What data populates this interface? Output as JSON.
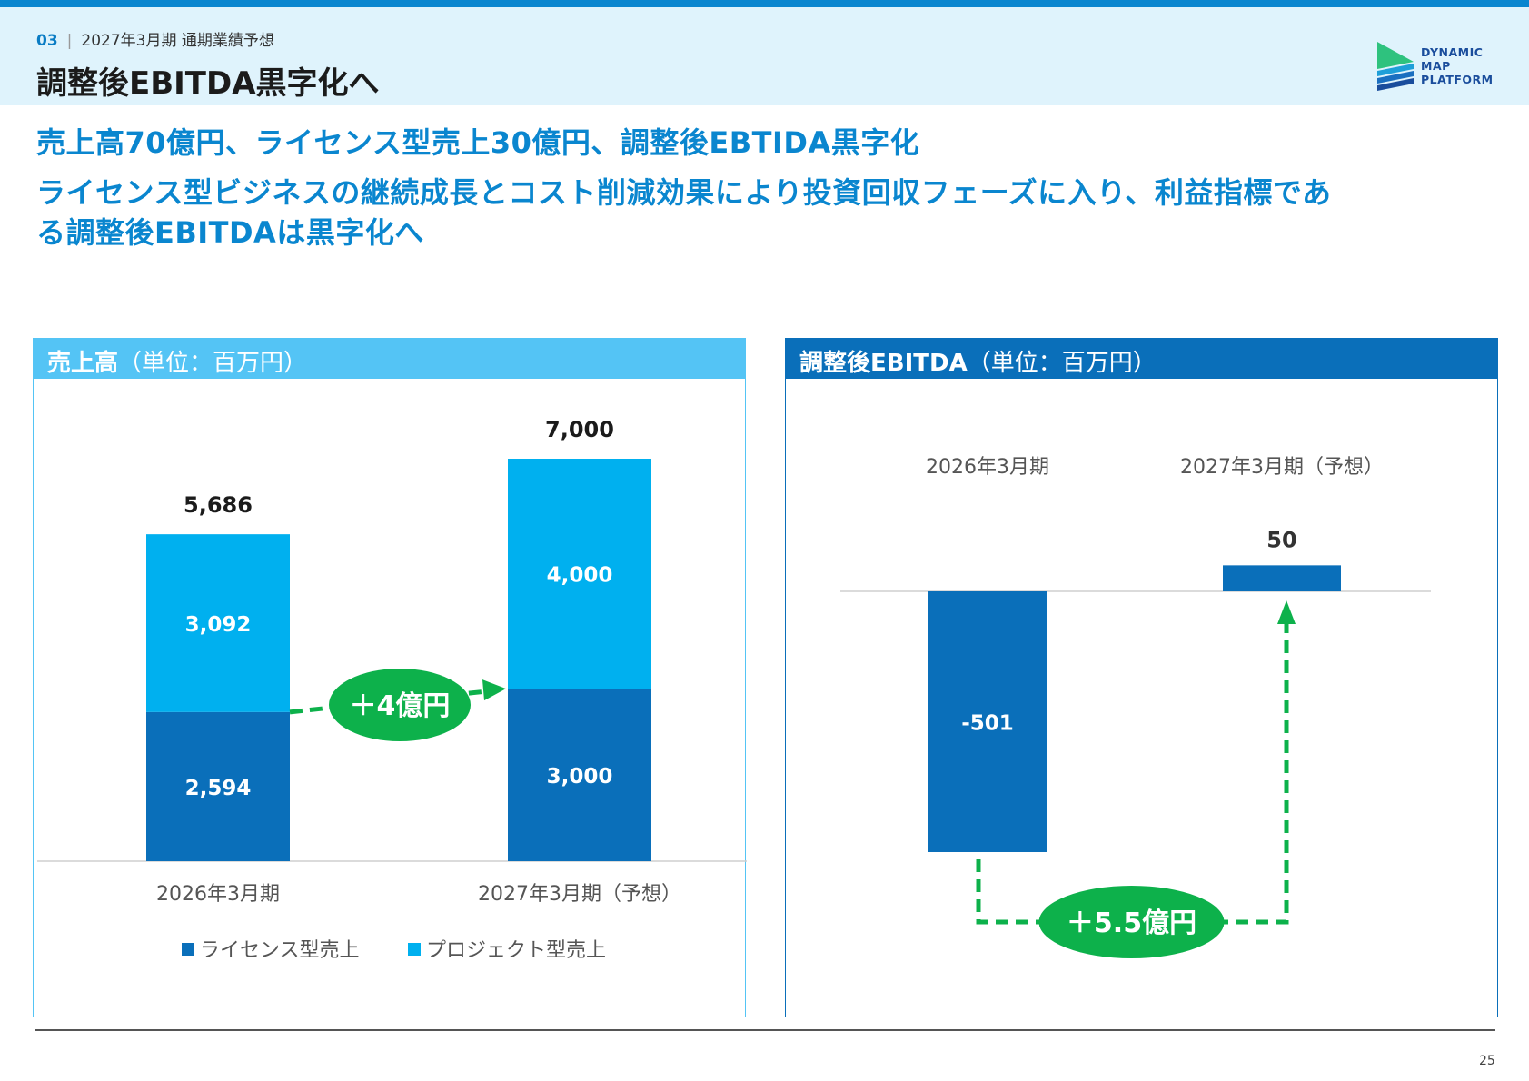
{
  "header": {
    "section_number": "03",
    "breadcrumb": "2027年3月期 通期業績予想",
    "title": "調整後EBITDA黒字化へ",
    "logo_lines": [
      "DYNAMIC",
      "MAP",
      "PLATFORM"
    ]
  },
  "headlines": [
    "売上高70億円、ライセンス型売上30億円、調整後EBTIDA黒字化",
    "ライセンス型ビジネスの継続成長とコスト削減効果により投資回収フェーズに入り、利益指標であ",
    "る調整後EBITDAは黒字化へ"
  ],
  "colors": {
    "license": "#0a6fba",
    "project": "#00b0ef",
    "ebitda": "#0a6fba",
    "growth_badge": "#0db14b",
    "header_bg": "#dff3fc",
    "accent": "#0a86cf"
  },
  "chart_data": [
    {
      "type": "bar",
      "stacked": true,
      "panel_title": "売上高",
      "panel_unit": "（単位：百万円）",
      "categories": [
        "2026年3月期",
        "2027年3月期（予想）"
      ],
      "series": [
        {
          "name": "ライセンス型売上",
          "values": [
            2594,
            3000
          ],
          "labels": [
            "2,594",
            "3,000"
          ]
        },
        {
          "name": "プロジェクト型売上",
          "values": [
            3092,
            4000
          ],
          "labels": [
            "3,092",
            "4,000"
          ]
        }
      ],
      "totals": [
        5686,
        7000
      ],
      "total_labels": [
        "5,686",
        "7,000"
      ],
      "annotation": "＋4億円",
      "legend_position": "bottom",
      "ylim": [
        0,
        7000
      ]
    },
    {
      "type": "bar",
      "panel_title": "調整後EBITDA",
      "panel_unit": "（単位：百万円）",
      "categories": [
        "2026年3月期",
        "2027年3月期（予想）"
      ],
      "values": [
        -501,
        50
      ],
      "value_labels": [
        "-501",
        "50"
      ],
      "annotation": "＋5.5億円",
      "ylim": [
        -501,
        50
      ]
    }
  ],
  "footer": {
    "page_number": "25"
  }
}
